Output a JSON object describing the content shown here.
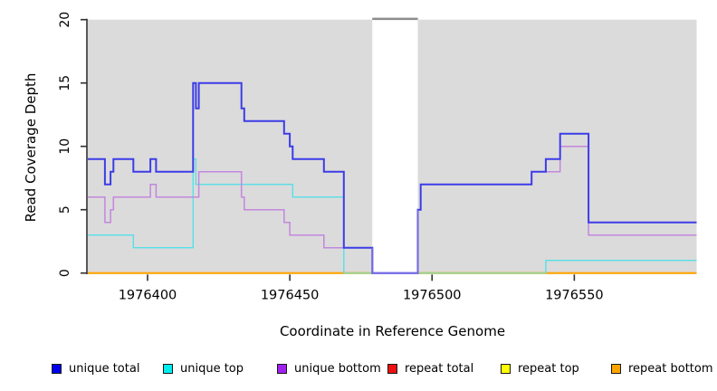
{
  "labels": {
    "ylabel": "Read Coverage Depth",
    "xlabel": "Coordinate in Reference Genome"
  },
  "legend": {
    "items": [
      {
        "label": "unique total",
        "color": "#0000ee"
      },
      {
        "label": "unique top",
        "color": "#00eeee"
      },
      {
        "label": "unique bottom",
        "color": "#a020f0"
      },
      {
        "label": "repeat total",
        "color": "#ee1111"
      },
      {
        "label": "repeat top",
        "color": "#ffff00"
      },
      {
        "label": "repeat bottom",
        "color": "#ffa500"
      }
    ]
  },
  "chart_data": {
    "type": "line",
    "subtype": "step-coverage",
    "title": "",
    "xlabel": "Coordinate in Reference Genome",
    "ylabel": "Read Coverage Depth",
    "xlim": [
      1976379,
      1976593
    ],
    "ylim": [
      0,
      20
    ],
    "xticks": [
      {
        "value": 1976400,
        "label": "1976400"
      },
      {
        "value": 1976450,
        "label": "1976450"
      },
      {
        "value": 1976500,
        "label": "1976500"
      },
      {
        "value": 1976550,
        "label": "1976550"
      }
    ],
    "yticks": [
      {
        "value": 0,
        "label": "0"
      },
      {
        "value": 5,
        "label": "5"
      },
      {
        "value": 10,
        "label": "10"
      },
      {
        "value": 15,
        "label": "15"
      },
      {
        "value": 20,
        "label": "20"
      }
    ],
    "panel_bg": "#dbdbdb",
    "gap_region": {
      "start": 1976479,
      "end": 1976495,
      "top_border_color": "#8c8c8c"
    },
    "legend_position": "bottom",
    "grid": false,
    "series": [
      {
        "name": "unique total",
        "color": "#0000ee",
        "points": [
          [
            1976379,
            9
          ],
          [
            1976385,
            7
          ],
          [
            1976387,
            8
          ],
          [
            1976388,
            9
          ],
          [
            1976395,
            8
          ],
          [
            1976401,
            9
          ],
          [
            1976403,
            8
          ],
          [
            1976416,
            15
          ],
          [
            1976417,
            13
          ],
          [
            1976418,
            15
          ],
          [
            1976433,
            13
          ],
          [
            1976434,
            12
          ],
          [
            1976448,
            11
          ],
          [
            1976450,
            10
          ],
          [
            1976451,
            9
          ],
          [
            1976462,
            8
          ],
          [
            1976469,
            2
          ],
          [
            1976479,
            0
          ],
          [
            1976495,
            5
          ],
          [
            1976496,
            7
          ],
          [
            1976535,
            8
          ],
          [
            1976540,
            9
          ],
          [
            1976545,
            11
          ],
          [
            1976555,
            4
          ]
        ],
        "end": 1976593
      },
      {
        "name": "unique top",
        "color": "#00eeee",
        "points": [
          [
            1976379,
            3
          ],
          [
            1976395,
            2
          ],
          [
            1976416,
            9
          ],
          [
            1976417,
            7
          ],
          [
            1976451,
            6
          ],
          [
            1976469,
            0
          ],
          [
            1976540,
            1
          ]
        ],
        "end": 1976593
      },
      {
        "name": "unique bottom",
        "color": "#a020f0",
        "points": [
          [
            1976379,
            6
          ],
          [
            1976385,
            4
          ],
          [
            1976387,
            5
          ],
          [
            1976388,
            6
          ],
          [
            1976401,
            7
          ],
          [
            1976403,
            6
          ],
          [
            1976418,
            8
          ],
          [
            1976433,
            6
          ],
          [
            1976434,
            5
          ],
          [
            1976448,
            4
          ],
          [
            1976450,
            3
          ],
          [
            1976462,
            2
          ],
          [
            1976479,
            0
          ],
          [
            1976495,
            5
          ],
          [
            1976496,
            7
          ],
          [
            1976535,
            8
          ],
          [
            1976545,
            10
          ],
          [
            1976555,
            3
          ]
        ],
        "end": 1976593
      },
      {
        "name": "repeat total",
        "color": "#ee1111",
        "runs": [
          {
            "points": [
              [
                1976379,
                0
              ]
            ],
            "end": 1976479
          },
          {
            "points": [
              [
                1976495,
                0
              ]
            ],
            "end": 1976593
          }
        ]
      },
      {
        "name": "repeat top",
        "color": "#ffff00",
        "runs": [
          {
            "points": [
              [
                1976379,
                0
              ]
            ],
            "end": 1976479
          },
          {
            "points": [
              [
                1976495,
                0
              ]
            ],
            "end": 1976593
          }
        ]
      },
      {
        "name": "repeat bottom",
        "color": "#ffa500",
        "runs": [
          {
            "points": [
              [
                1976379,
                0
              ]
            ],
            "end": 1976479
          },
          {
            "points": [
              [
                1976495,
                0
              ]
            ],
            "end": 1976593
          }
        ]
      }
    ],
    "render_layers": [
      {
        "name": "repeat-total-line",
        "series": "repeat total",
        "color": "#ee1111",
        "width": 1.6
      },
      {
        "name": "repeat-top-line",
        "series": "repeat top",
        "color": "#ffff00",
        "width": 1.6
      },
      {
        "name": "repeat-bottom-line",
        "series": "repeat bottom",
        "color": "#ffa500",
        "width": 2
      },
      {
        "name": "unique-top-line",
        "series": "unique top",
        "color": "#55e0e6",
        "width": 1.4
      },
      {
        "name": "cyan-over-orange-blend",
        "color": "#8ed8a0",
        "width": 1.6,
        "runs": [
          {
            "points": [
              [
                1976469,
                0
              ]
            ],
            "end": 1976479
          },
          {
            "points": [
              [
                1976495,
                0
              ]
            ],
            "end": 1976540
          }
        ]
      },
      {
        "name": "unique-bottom-line",
        "series": "unique bottom",
        "color": "#c387dd",
        "width": 1.5
      },
      {
        "name": "unique-total-line",
        "series": "unique total",
        "color": "#3c3ce8",
        "width": 2
      },
      {
        "name": "gap-zero-line",
        "color": "#7668e2",
        "width": 1.8,
        "runs": [
          {
            "points": [
              [
                1976479,
                2
              ],
              [
                1976479,
                0
              ],
              [
                1976495,
                5
              ]
            ]
          }
        ]
      }
    ],
    "axis_color": "#2f2f2f"
  }
}
